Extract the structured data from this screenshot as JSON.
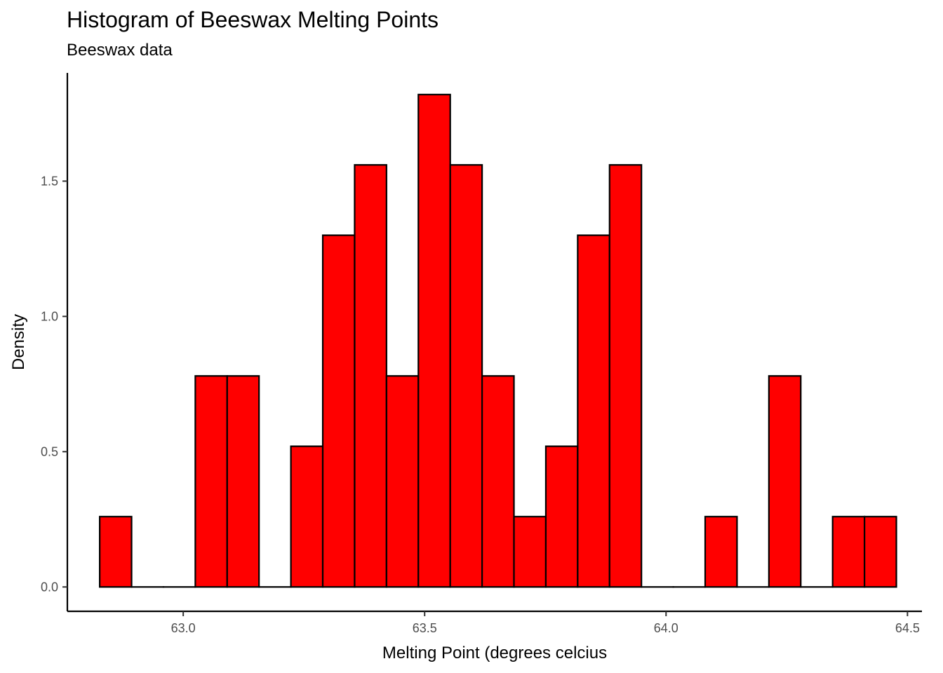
{
  "chart_data": {
    "type": "histogram",
    "title": "Histogram of Beeswax Melting Points",
    "subtitle": "Beeswax data",
    "xlabel": "Melting Point (degrees celcius",
    "ylabel": "Density",
    "xlim": [
      62.76,
      64.53
    ],
    "ylim": [
      -0.09,
      1.9
    ],
    "x_ticks": [
      63.0,
      63.5,
      64.0,
      64.5
    ],
    "x_tick_labels": [
      "63.0",
      "63.5",
      "64.0",
      "64.5"
    ],
    "y_ticks": [
      0.0,
      0.5,
      1.0,
      1.5
    ],
    "y_tick_labels": [
      "0.0",
      "0.5",
      "1.0",
      "1.5"
    ],
    "bin_width": 0.066,
    "bins_start": [
      62.827,
      62.893,
      62.959,
      63.025,
      63.091,
      63.157,
      63.223,
      63.289,
      63.355,
      63.421,
      63.487,
      63.553,
      63.619,
      63.685,
      63.751,
      63.817,
      63.883,
      63.949,
      64.015,
      64.081,
      64.147,
      64.213,
      64.279,
      64.345,
      64.411
    ],
    "density": [
      0.26,
      0.0,
      0.0,
      0.78,
      0.78,
      0.0,
      0.52,
      1.3,
      1.56,
      0.78,
      1.82,
      1.56,
      0.78,
      0.26,
      0.52,
      1.3,
      1.56,
      0.0,
      0.0,
      0.26,
      0.0,
      0.78,
      0.0,
      0.26,
      0.26
    ],
    "fill_color": "#ff0000",
    "outline_color": "#000000",
    "grid": false
  }
}
